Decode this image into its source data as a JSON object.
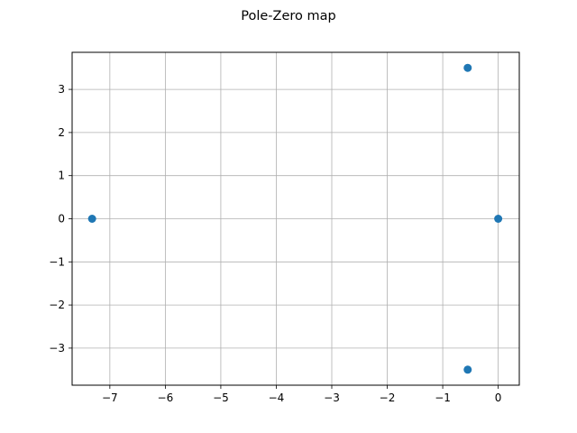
{
  "chart_data": {
    "type": "scatter",
    "title": "Pole-Zero map",
    "xlabel": "",
    "ylabel": "",
    "xlim": [
      -7.68,
      0.38
    ],
    "ylim": [
      -3.86,
      3.86
    ],
    "grid": true,
    "xticks": [
      {
        "value": -7,
        "label": "−7"
      },
      {
        "value": -6,
        "label": "−6"
      },
      {
        "value": -5,
        "label": "−5"
      },
      {
        "value": -4,
        "label": "−4"
      },
      {
        "value": -3,
        "label": "−3"
      },
      {
        "value": -2,
        "label": "−2"
      },
      {
        "value": -1,
        "label": "−1"
      },
      {
        "value": 0,
        "label": "0"
      }
    ],
    "yticks": [
      {
        "value": 3,
        "label": "3"
      },
      {
        "value": 2,
        "label": "2"
      },
      {
        "value": 1,
        "label": "1"
      },
      {
        "value": 0,
        "label": "0"
      },
      {
        "value": -1,
        "label": "−1"
      },
      {
        "value": -2,
        "label": "−2"
      },
      {
        "value": -3,
        "label": "−3"
      }
    ],
    "series": [
      {
        "color": "#1f77b4",
        "points": [
          {
            "x": -0.55,
            "y": 3.5
          },
          {
            "x": -7.32,
            "y": 0.0
          },
          {
            "x": 0.0,
            "y": 0.0
          },
          {
            "x": -0.55,
            "y": -3.5
          }
        ]
      }
    ]
  }
}
